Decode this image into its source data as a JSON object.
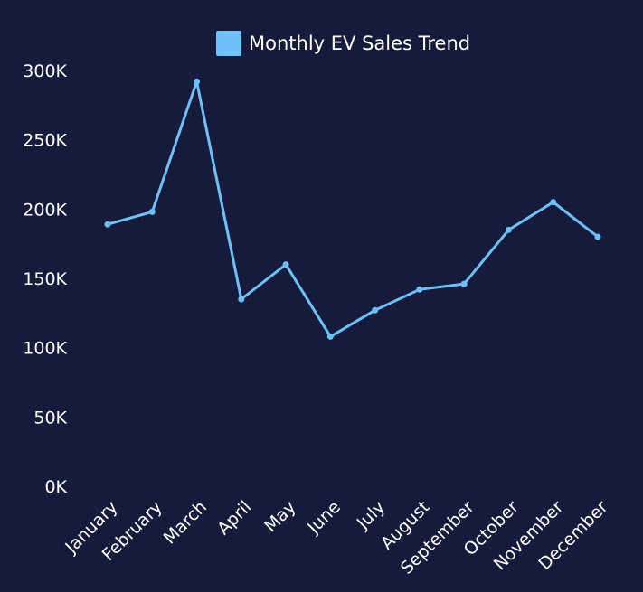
{
  "chart_data": {
    "type": "line",
    "categories": [
      "January",
      "February",
      "March",
      "April",
      "May",
      "June",
      "July",
      "August",
      "September",
      "October",
      "November",
      "December"
    ],
    "series": [
      {
        "name": "Monthly EV Sales Trend",
        "values": [
          189000,
          198000,
          292000,
          135000,
          160000,
          108000,
          127000,
          142000,
          146000,
          185000,
          205000,
          180000
        ]
      }
    ],
    "yticks": [
      "0K",
      "50K",
      "100K",
      "150K",
      "200K",
      "250K",
      "300K"
    ],
    "ylim": [
      0,
      300000
    ],
    "grid": false,
    "legend_position": "top",
    "colors": {
      "background": "#161a3b",
      "line": "#6ec0f8",
      "text": "#ffffff"
    }
  }
}
